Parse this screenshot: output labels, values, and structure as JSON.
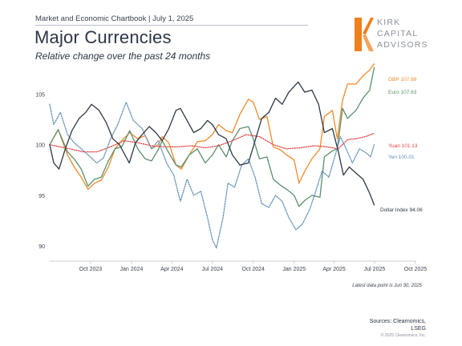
{
  "header": {
    "text": "Market and Economic Chartbook | July 1, 2025",
    "title": "Major Currencies",
    "subtitle": "Relative change over the past 24 months"
  },
  "logo": {
    "line1": "KIRK",
    "line2": "CAPITAL",
    "line3": "ADVISORS",
    "color": "#f07f1d"
  },
  "footer": {
    "note": "Latest data point is Jun 30, 2025",
    "sources_line1": "Sources: Clearnomics,",
    "sources_line2": "LSEG",
    "copyright": "© 2025 Clearnomics, Inc."
  },
  "chart_data": {
    "type": "line",
    "title": "",
    "xlabel": "",
    "ylabel": "",
    "ylim": [
      88.5,
      107.5
    ],
    "y_ticks": [
      90,
      95,
      100,
      105
    ],
    "x_range": [
      "2023-07-01",
      "2025-10-01"
    ],
    "x_ticks": [
      {
        "date": "2023-10-01",
        "label": "Oct 2023"
      },
      {
        "date": "2024-01-01",
        "label": "Jan 2024"
      },
      {
        "date": "2024-04-01",
        "label": "Apr 2024"
      },
      {
        "date": "2024-07-01",
        "label": "Jul 2024"
      },
      {
        "date": "2024-10-01",
        "label": "Oct 2024"
      },
      {
        "date": "2025-01-01",
        "label": "Jan 2025"
      },
      {
        "date": "2025-04-01",
        "label": "Apr 2025"
      },
      {
        "date": "2025-07-01",
        "label": "Jul 2025"
      },
      {
        "date": "2025-10-01",
        "label": "Oct 2025"
      }
    ],
    "grid": false,
    "series": [
      {
        "name": "GBP",
        "label": "GBP 107.99",
        "color": "#f08a2c",
        "dash": "solid",
        "points": [
          [
            "2023-07-01",
            100.0
          ],
          [
            "2023-07-20",
            101.5
          ],
          [
            "2023-08-10",
            99.0
          ],
          [
            "2023-08-25",
            97.8
          ],
          [
            "2023-09-10",
            96.8
          ],
          [
            "2023-09-25",
            95.6
          ],
          [
            "2023-10-10",
            96.2
          ],
          [
            "2023-10-25",
            96.5
          ],
          [
            "2023-11-10",
            97.8
          ],
          [
            "2023-11-25",
            99.6
          ],
          [
            "2023-12-10",
            100.4
          ],
          [
            "2023-12-28",
            101.2
          ],
          [
            "2024-01-15",
            100.6
          ],
          [
            "2024-02-01",
            100.9
          ],
          [
            "2024-02-15",
            99.6
          ],
          [
            "2024-03-01",
            100.0
          ],
          [
            "2024-03-10",
            100.8
          ],
          [
            "2024-03-25",
            100.2
          ],
          [
            "2024-04-10",
            98.0
          ],
          [
            "2024-04-22",
            97.6
          ],
          [
            "2024-05-10",
            99.0
          ],
          [
            "2024-05-28",
            100.3
          ],
          [
            "2024-06-15",
            100.4
          ],
          [
            "2024-07-01",
            101.0
          ],
          [
            "2024-07-15",
            102.0
          ],
          [
            "2024-08-01",
            101.4
          ],
          [
            "2024-08-15",
            101.2
          ],
          [
            "2024-09-01",
            103.0
          ],
          [
            "2024-09-20",
            104.5
          ],
          [
            "2024-10-01",
            104.2
          ],
          [
            "2024-10-15",
            102.5
          ],
          [
            "2024-11-01",
            102.8
          ],
          [
            "2024-11-15",
            99.8
          ],
          [
            "2024-12-01",
            99.5
          ],
          [
            "2024-12-15",
            99.0
          ],
          [
            "2025-01-01",
            98.5
          ],
          [
            "2025-01-12",
            96.2
          ],
          [
            "2025-01-25",
            97.4
          ],
          [
            "2025-02-10",
            98.6
          ],
          [
            "2025-02-28",
            99.6
          ],
          [
            "2025-03-10",
            102.8
          ],
          [
            "2025-03-28",
            103.4
          ],
          [
            "2025-04-08",
            100.6
          ],
          [
            "2025-04-20",
            104.4
          ],
          [
            "2025-05-01",
            106.0
          ],
          [
            "2025-05-20",
            106.0
          ],
          [
            "2025-06-05",
            106.8
          ],
          [
            "2025-06-20",
            107.4
          ],
          [
            "2025-06-30",
            107.99
          ]
        ]
      },
      {
        "name": "Euro",
        "label": "Euro 107.63",
        "color": "#5b8f6e",
        "dash": "solid",
        "points": [
          [
            "2023-07-01",
            100.0
          ],
          [
            "2023-07-20",
            101.5
          ],
          [
            "2023-08-10",
            99.3
          ],
          [
            "2023-08-25",
            98.6
          ],
          [
            "2023-09-10",
            97.6
          ],
          [
            "2023-09-25",
            95.9
          ],
          [
            "2023-10-10",
            96.6
          ],
          [
            "2023-10-25",
            96.8
          ],
          [
            "2023-11-10",
            98.4
          ],
          [
            "2023-11-25",
            99.6
          ],
          [
            "2023-12-10",
            99.8
          ],
          [
            "2023-12-28",
            101.4
          ],
          [
            "2024-01-15",
            99.6
          ],
          [
            "2024-02-01",
            98.6
          ],
          [
            "2024-02-15",
            98.4
          ],
          [
            "2024-03-01",
            99.5
          ],
          [
            "2024-03-10",
            100.4
          ],
          [
            "2024-03-25",
            99.2
          ],
          [
            "2024-04-10",
            98.0
          ],
          [
            "2024-04-22",
            97.8
          ],
          [
            "2024-05-10",
            99.0
          ],
          [
            "2024-05-28",
            99.6
          ],
          [
            "2024-06-15",
            98.2
          ],
          [
            "2024-07-01",
            99.0
          ],
          [
            "2024-07-15",
            100.0
          ],
          [
            "2024-08-01",
            98.8
          ],
          [
            "2024-08-15",
            100.4
          ],
          [
            "2024-09-01",
            101.6
          ],
          [
            "2024-09-20",
            101.8
          ],
          [
            "2024-10-01",
            100.6
          ],
          [
            "2024-10-15",
            98.6
          ],
          [
            "2024-11-01",
            98.8
          ],
          [
            "2024-11-15",
            96.6
          ],
          [
            "2024-12-01",
            96.0
          ],
          [
            "2024-12-15",
            95.6
          ],
          [
            "2025-01-01",
            95.0
          ],
          [
            "2025-01-12",
            93.9
          ],
          [
            "2025-01-25",
            94.5
          ],
          [
            "2025-02-10",
            95.0
          ],
          [
            "2025-02-28",
            94.8
          ],
          [
            "2025-03-10",
            98.8
          ],
          [
            "2025-03-28",
            99.4
          ],
          [
            "2025-04-08",
            99.6
          ],
          [
            "2025-04-20",
            103.6
          ],
          [
            "2025-05-01",
            102.6
          ],
          [
            "2025-05-20",
            103.4
          ],
          [
            "2025-06-05",
            104.6
          ],
          [
            "2025-06-20",
            105.4
          ],
          [
            "2025-06-30",
            107.63
          ]
        ]
      },
      {
        "name": "Yuan",
        "label": "Yuan 101.13",
        "color": "#e04848",
        "dash": "dotted",
        "points": [
          [
            "2023-07-01",
            100.0
          ],
          [
            "2023-08-15",
            99.6
          ],
          [
            "2023-09-15",
            99.3
          ],
          [
            "2023-10-15",
            99.3
          ],
          [
            "2023-11-15",
            99.8
          ],
          [
            "2023-12-15",
            100.4
          ],
          [
            "2024-01-15",
            100.2
          ],
          [
            "2024-02-15",
            99.9
          ],
          [
            "2024-03-15",
            99.8
          ],
          [
            "2024-04-15",
            99.8
          ],
          [
            "2024-05-15",
            99.9
          ],
          [
            "2024-06-15",
            99.7
          ],
          [
            "2024-07-15",
            99.9
          ],
          [
            "2024-08-15",
            100.4
          ],
          [
            "2024-09-15",
            101.0
          ],
          [
            "2024-10-15",
            100.8
          ],
          [
            "2024-11-15",
            100.0
          ],
          [
            "2024-12-15",
            99.6
          ],
          [
            "2025-01-15",
            99.7
          ],
          [
            "2025-02-15",
            99.9
          ],
          [
            "2025-03-15",
            99.8
          ],
          [
            "2025-04-10",
            99.6
          ],
          [
            "2025-05-01",
            100.5
          ],
          [
            "2025-05-20",
            100.6
          ],
          [
            "2025-06-10",
            100.8
          ],
          [
            "2025-06-30",
            101.13
          ]
        ]
      },
      {
        "name": "Yen",
        "label": "Yen 100.01",
        "color": "#5f8eb5",
        "dash": "dotted",
        "points": [
          [
            "2023-07-01",
            104.0
          ],
          [
            "2023-07-10",
            102.0
          ],
          [
            "2023-07-25",
            103.2
          ],
          [
            "2023-08-10",
            101.0
          ],
          [
            "2023-08-25",
            100.2
          ],
          [
            "2023-09-10",
            99.6
          ],
          [
            "2023-09-25",
            99.0
          ],
          [
            "2023-10-15",
            98.2
          ],
          [
            "2023-10-30",
            98.7
          ],
          [
            "2023-11-15",
            100.6
          ],
          [
            "2023-12-01",
            102.0
          ],
          [
            "2023-12-20",
            104.2
          ],
          [
            "2024-01-05",
            102.4
          ],
          [
            "2024-01-25",
            101.6
          ],
          [
            "2024-02-15",
            99.6
          ],
          [
            "2024-03-01",
            100.4
          ],
          [
            "2024-03-20",
            98.2
          ],
          [
            "2024-04-05",
            97.0
          ],
          [
            "2024-04-20",
            94.4
          ],
          [
            "2024-05-05",
            96.6
          ],
          [
            "2024-05-20",
            95.0
          ],
          [
            "2024-06-05",
            95.4
          ],
          [
            "2024-06-20",
            92.8
          ],
          [
            "2024-07-01",
            90.6
          ],
          [
            "2024-07-10",
            89.8
          ],
          [
            "2024-07-25",
            92.8
          ],
          [
            "2024-08-05",
            96.2
          ],
          [
            "2024-08-20",
            95.8
          ],
          [
            "2024-09-05",
            98.0
          ],
          [
            "2024-09-20",
            98.6
          ],
          [
            "2024-10-05",
            96.8
          ],
          [
            "2024-10-20",
            94.2
          ],
          [
            "2024-11-05",
            93.8
          ],
          [
            "2024-11-20",
            95.0
          ],
          [
            "2024-12-05",
            94.4
          ],
          [
            "2024-12-20",
            92.8
          ],
          [
            "2025-01-05",
            91.6
          ],
          [
            "2025-01-20",
            92.2
          ],
          [
            "2025-02-05",
            93.6
          ],
          [
            "2025-02-20",
            95.6
          ],
          [
            "2025-03-05",
            97.4
          ],
          [
            "2025-03-20",
            96.8
          ],
          [
            "2025-04-05",
            99.2
          ],
          [
            "2025-04-15",
            100.8
          ],
          [
            "2025-04-28",
            99.6
          ],
          [
            "2025-05-12",
            98.2
          ],
          [
            "2025-05-28",
            99.6
          ],
          [
            "2025-06-12",
            99.2
          ],
          [
            "2025-06-22",
            98.8
          ],
          [
            "2025-06-30",
            100.01
          ]
        ]
      },
      {
        "name": "Dollar Index",
        "label": "Dollar Index 94.06",
        "color": "#2c3845",
        "dash": "solid",
        "points": [
          [
            "2023-07-01",
            100.0
          ],
          [
            "2023-07-10",
            98.2
          ],
          [
            "2023-07-22",
            97.6
          ],
          [
            "2023-08-05",
            99.6
          ],
          [
            "2023-08-20",
            101.4
          ],
          [
            "2023-09-05",
            102.6
          ],
          [
            "2023-09-20",
            103.2
          ],
          [
            "2023-10-03",
            104.0
          ],
          [
            "2023-10-20",
            103.4
          ],
          [
            "2023-11-05",
            102.2
          ],
          [
            "2023-11-20",
            100.6
          ],
          [
            "2023-12-05",
            100.0
          ],
          [
            "2023-12-27",
            98.2
          ],
          [
            "2024-01-10",
            100.2
          ],
          [
            "2024-01-25",
            101.0
          ],
          [
            "2024-02-10",
            101.8
          ],
          [
            "2024-02-25",
            101.2
          ],
          [
            "2024-03-10",
            100.4
          ],
          [
            "2024-03-25",
            101.6
          ],
          [
            "2024-04-10",
            103.4
          ],
          [
            "2024-04-20",
            103.6
          ],
          [
            "2024-05-05",
            102.4
          ],
          [
            "2024-05-20",
            101.2
          ],
          [
            "2024-06-05",
            101.6
          ],
          [
            "2024-06-20",
            102.4
          ],
          [
            "2024-07-01",
            102.0
          ],
          [
            "2024-07-15",
            101.0
          ],
          [
            "2024-08-01",
            100.6
          ],
          [
            "2024-08-15",
            99.0
          ],
          [
            "2024-09-01",
            98.0
          ],
          [
            "2024-09-20",
            98.2
          ],
          [
            "2024-10-05",
            100.4
          ],
          [
            "2024-10-20",
            102.6
          ],
          [
            "2024-11-05",
            103.2
          ],
          [
            "2024-11-20",
            104.6
          ],
          [
            "2024-12-05",
            104.0
          ],
          [
            "2024-12-20",
            105.2
          ],
          [
            "2025-01-10",
            106.2
          ],
          [
            "2025-01-25",
            105.2
          ],
          [
            "2025-02-10",
            105.4
          ],
          [
            "2025-02-25",
            104.0
          ],
          [
            "2025-03-10",
            101.2
          ],
          [
            "2025-03-28",
            101.6
          ],
          [
            "2025-04-10",
            99.4
          ],
          [
            "2025-04-22",
            97.0
          ],
          [
            "2025-05-05",
            97.8
          ],
          [
            "2025-05-20",
            97.2
          ],
          [
            "2025-06-05",
            96.6
          ],
          [
            "2025-06-20",
            95.2
          ],
          [
            "2025-06-30",
            94.06
          ]
        ]
      }
    ]
  }
}
